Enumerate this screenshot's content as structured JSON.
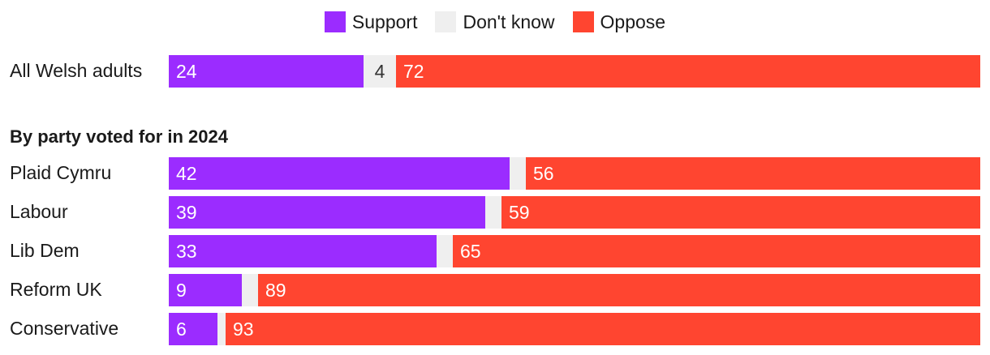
{
  "colors": {
    "support": "#9b2cff",
    "dont_know": "#efefef",
    "oppose": "#ff4530"
  },
  "chart_data": {
    "type": "bar",
    "orientation": "horizontal",
    "stacked": true,
    "xlim": [
      0,
      100
    ],
    "legend": {
      "placement": "top-center"
    },
    "series_names": [
      "Support",
      "Don't know",
      "Oppose"
    ],
    "overall": {
      "label": "All Welsh adults",
      "support": 24,
      "dont_know": 4,
      "oppose": 72
    },
    "section_title": "By party voted for in 2024",
    "rows": [
      {
        "label": "Plaid Cymru",
        "support": 42,
        "dont_know": 2,
        "oppose": 56
      },
      {
        "label": "Labour",
        "support": 39,
        "dont_know": 2,
        "oppose": 59
      },
      {
        "label": "Lib Dem",
        "support": 33,
        "dont_know": 2,
        "oppose": 65
      },
      {
        "label": "Reform UK",
        "support": 9,
        "dont_know": 2,
        "oppose": 89
      },
      {
        "label": "Conservative",
        "support": 6,
        "dont_know": 1,
        "oppose": 93
      }
    ]
  }
}
